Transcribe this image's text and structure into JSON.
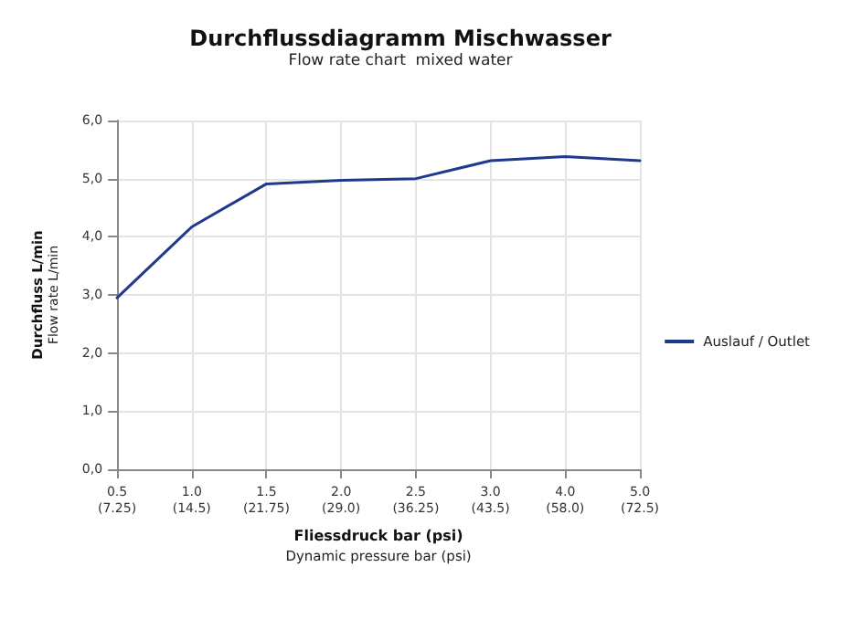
{
  "chart_data": {
    "type": "line",
    "title": "Durchflussdiagramm Mischwasser",
    "subtitle": "Flow rate chart  mixed water",
    "xlabel": "Fliessdruck bar (psi)\nDynamic pressure bar (psi)",
    "ylabel": "Durchfluss L/min\nFlow rate L/min",
    "categories": [
      "0.5\n(7.25)",
      "1.0\n(14.5)",
      "1.5\n(21.75)",
      "2.0\n(29.0)",
      "2.5\n(36.25)",
      "3.0\n(43.5)",
      "4.0\n(58.0)",
      "5.0\n(72.5)"
    ],
    "series": [
      {
        "name": "Auslauf / Outlet",
        "color": "#1f3a8c",
        "values": [
          2.95,
          4.17,
          4.91,
          4.97,
          5.0,
          5.31,
          5.38,
          5.31
        ]
      }
    ],
    "ylim": [
      0,
      6
    ],
    "yticks": [
      {
        "value": 0,
        "label": "0,0"
      },
      {
        "value": 1,
        "label": "1,0"
      },
      {
        "value": 2,
        "label": "2,0"
      },
      {
        "value": 3,
        "label": "3,0"
      },
      {
        "value": 4,
        "label": "4,0"
      },
      {
        "value": 5,
        "label": "5,0"
      },
      {
        "value": 6,
        "label": "6,0"
      }
    ],
    "grid": true,
    "legend": "right",
    "marker": "none",
    "line_style": "solid"
  }
}
